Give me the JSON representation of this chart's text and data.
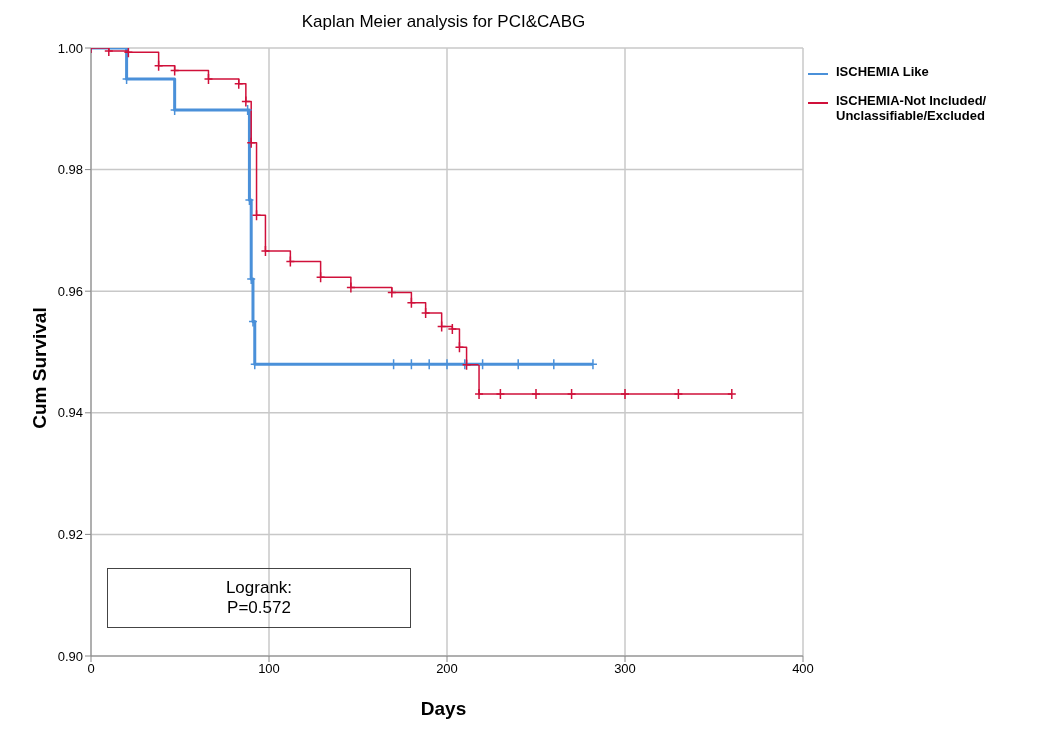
{
  "chart_data": {
    "type": "step",
    "title": "Kaplan Meier analysis for PCI&CABG",
    "xlabel": "Days",
    "ylabel": "Cum Survival",
    "xlim": [
      0,
      400
    ],
    "xticks": [
      0,
      100,
      200,
      300,
      400
    ],
    "ylim": [
      0.9,
      1.0
    ],
    "yticks": [
      {
        "value": 0.9,
        "label": "0.90"
      },
      {
        "value": 0.92,
        "label": "0.92"
      },
      {
        "value": 0.94,
        "label": "0.94"
      },
      {
        "value": 0.96,
        "label": "0.96"
      },
      {
        "value": 0.98,
        "label": "0.98"
      },
      {
        "value": 1.0,
        "label": "1.00"
      }
    ],
    "grid": true,
    "legend": "top right",
    "marker": "cross",
    "line_style": "solid",
    "annotations": [
      "Logrank:\nP=0.572"
    ],
    "series": [
      {
        "name": "ISCHEMIA Like",
        "color": "#4a90d9",
        "x": [
          0,
          20,
          47,
          88,
          89,
          90,
          91,
          92,
          170,
          180,
          190,
          200,
          210,
          220,
          240,
          260,
          282
        ],
        "values": [
          1.0,
          0.9949,
          0.9898,
          0.9898,
          0.975,
          0.962,
          0.955,
          0.948,
          0.948,
          0.948,
          0.948,
          0.948,
          0.948,
          0.948,
          0.948,
          0.948,
          0.948
        ]
      },
      {
        "name": "ISCHEMIA-Not Included/\nUnclassifiable/Excluded",
        "color": "#d0103a",
        "x": [
          0,
          10,
          21,
          38,
          47,
          66,
          83,
          87,
          90,
          93,
          98,
          112,
          129,
          146,
          169,
          180,
          188,
          197,
          203,
          207,
          211,
          218,
          230,
          250,
          270,
          300,
          330,
          360
        ],
        "values": [
          1.0,
          0.9995,
          0.9993,
          0.9971,
          0.9963,
          0.9949,
          0.9941,
          0.9912,
          0.9844,
          0.9725,
          0.9666,
          0.9649,
          0.9623,
          0.9606,
          0.9598,
          0.9581,
          0.9564,
          0.9542,
          0.9538,
          0.9508,
          0.9479,
          0.9431,
          0.9431,
          0.9431,
          0.9431,
          0.9431,
          0.9431,
          0.9431
        ]
      }
    ]
  }
}
